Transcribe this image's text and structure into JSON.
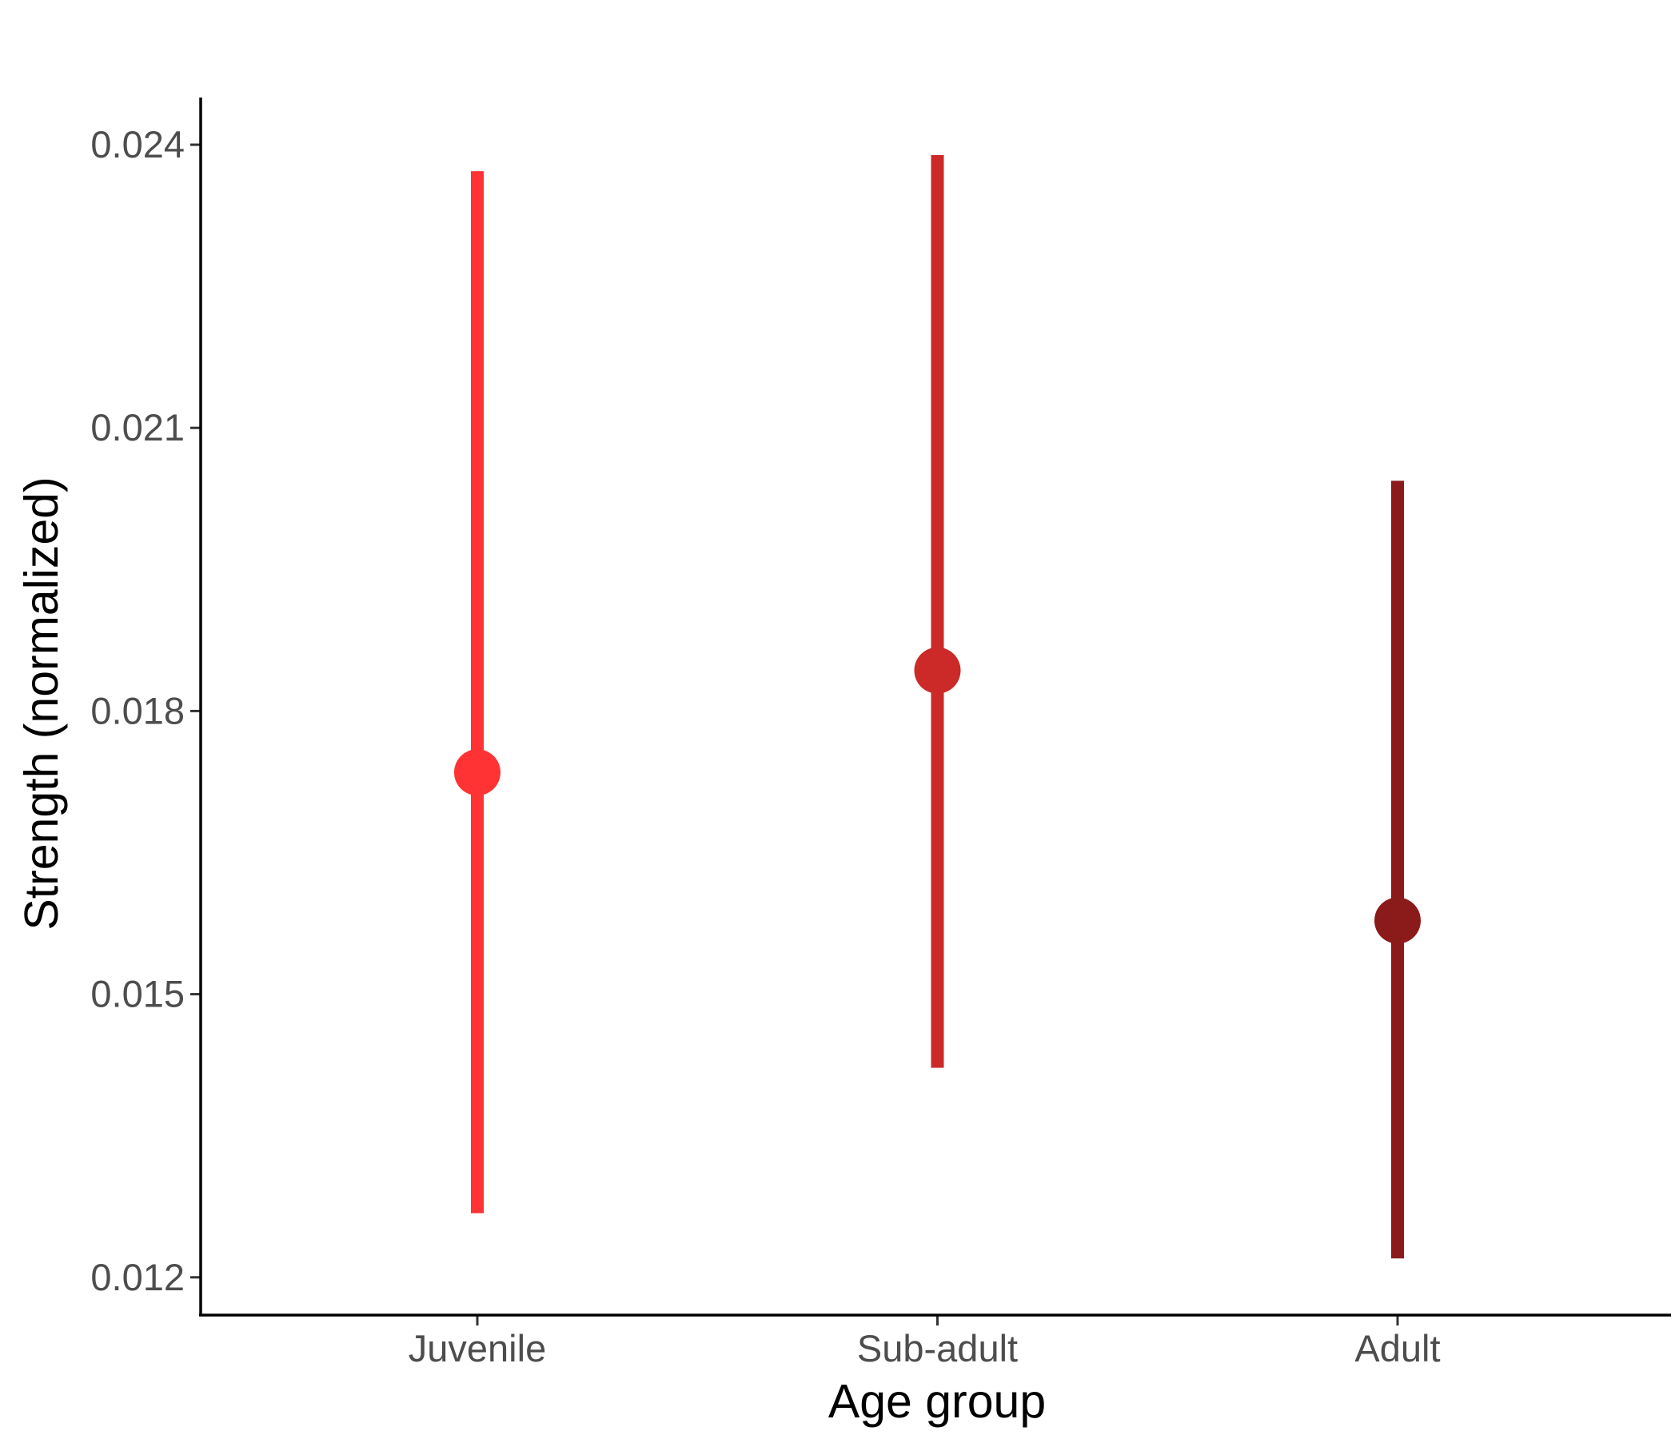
{
  "chart_data": {
    "type": "scatter",
    "title": "",
    "xlabel": "Age group",
    "ylabel": "Strength (normalized)",
    "ylim": [
      0.0116,
      0.0245
    ],
    "y_ticks": [
      0.012,
      0.015,
      0.018,
      0.021,
      0.024
    ],
    "y_tick_labels": [
      "0.012",
      "0.015",
      "0.018",
      "0.021",
      "0.024"
    ],
    "categories": [
      "Juvenile",
      "Sub-adult",
      "Adult"
    ],
    "points": [
      {
        "category": "Juvenile",
        "estimate": 0.01735,
        "lower": 0.01268,
        "upper": 0.02372,
        "color": "#ff3333"
      },
      {
        "category": "Sub-adult",
        "estimate": 0.01843,
        "lower": 0.01422,
        "upper": 0.02389,
        "color": "#cc2929"
      },
      {
        "category": "Adult",
        "estimate": 0.01578,
        "lower": 0.0122,
        "upper": 0.02044,
        "color": "#8b1a1a"
      }
    ],
    "grid": false,
    "legend": "none",
    "error_bars": true
  }
}
